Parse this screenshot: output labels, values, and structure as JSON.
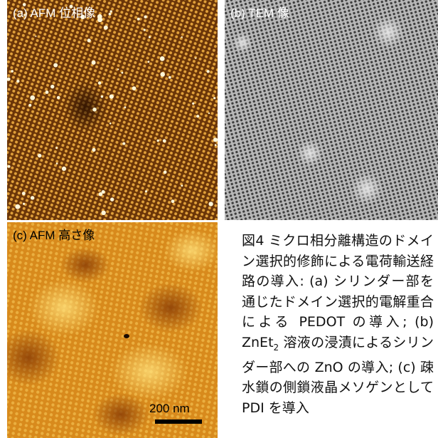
{
  "figure": {
    "panels": [
      {
        "label": "(a) AFM 位相像"
      },
      {
        "label": "(b) TEM 像"
      },
      {
        "label": "(c) AFM 高さ像",
        "scale_bar": "200 nm"
      }
    ],
    "caption": {
      "before_subscript": "図4 ミクロ相分離構造のドメイン選択的修飾による電荷輸送経路の導入: (a) シリンダー部を通じたドメイン選択的電解重合による PEDOT の導入; (b) ZnEt",
      "subscript": "2",
      "after_subscript": " 溶液の浸漬によるシリンダー部への ZnO の導入; (c) 疎水鎖の側鎖液晶メソゲンとして PDI を導入"
    }
  }
}
